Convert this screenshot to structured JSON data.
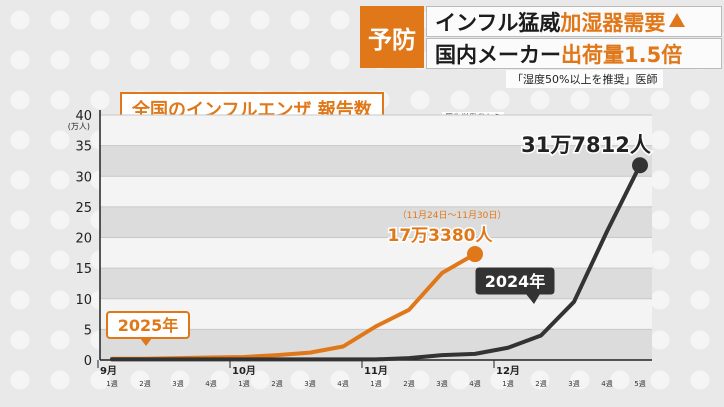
{
  "header": {
    "tag": "予防",
    "line1_dark": "インフル猛威",
    "line1_orange": "加湿器需要",
    "line2_dark": "国内メーカー",
    "line2_orange": "出荷量1.5倍",
    "note": "「湿度50%以上を推奨」医師"
  },
  "chart_title": "全国のインフルエンザ 報告数",
  "source": "厚生労働省から",
  "colors": {
    "orange": "#e0781a",
    "dark": "#333333"
  },
  "chart_data": {
    "type": "line",
    "title": "全国のインフルエンザ 報告数",
    "ylabel": "(万人)",
    "ylim": [
      0,
      40
    ],
    "yticks": [
      0,
      5,
      10,
      15,
      20,
      25,
      30,
      35,
      40
    ],
    "month_labels": [
      "9月",
      "10月",
      "11月",
      "12月"
    ],
    "week_labels": [
      "1週",
      "2週",
      "3週",
      "4週",
      "1週",
      "2週",
      "3週",
      "4週",
      "1週",
      "2週",
      "3週",
      "4週",
      "1週",
      "2週",
      "3週",
      "4週",
      "5週"
    ],
    "series": [
      {
        "name": "2025年",
        "color": "#e0781a",
        "values": [
          0.2,
          0.2,
          0.3,
          0.4,
          0.5,
          0.8,
          1.2,
          2.2,
          5.5,
          8.2,
          14.2,
          17.3
        ]
      },
      {
        "name": "2024年",
        "color": "#333333",
        "values": [
          0.1,
          0.1,
          0.1,
          0.1,
          0.1,
          0.1,
          0.1,
          0.1,
          0.1,
          0.3,
          0.8,
          1.0,
          2.0,
          4.0,
          9.5,
          21.0,
          31.8
        ]
      }
    ],
    "annotations": {
      "orange_date": "（11月24日〜11月30日）",
      "orange_value": "17万3380人",
      "dark_value": "31万7812人"
    }
  }
}
